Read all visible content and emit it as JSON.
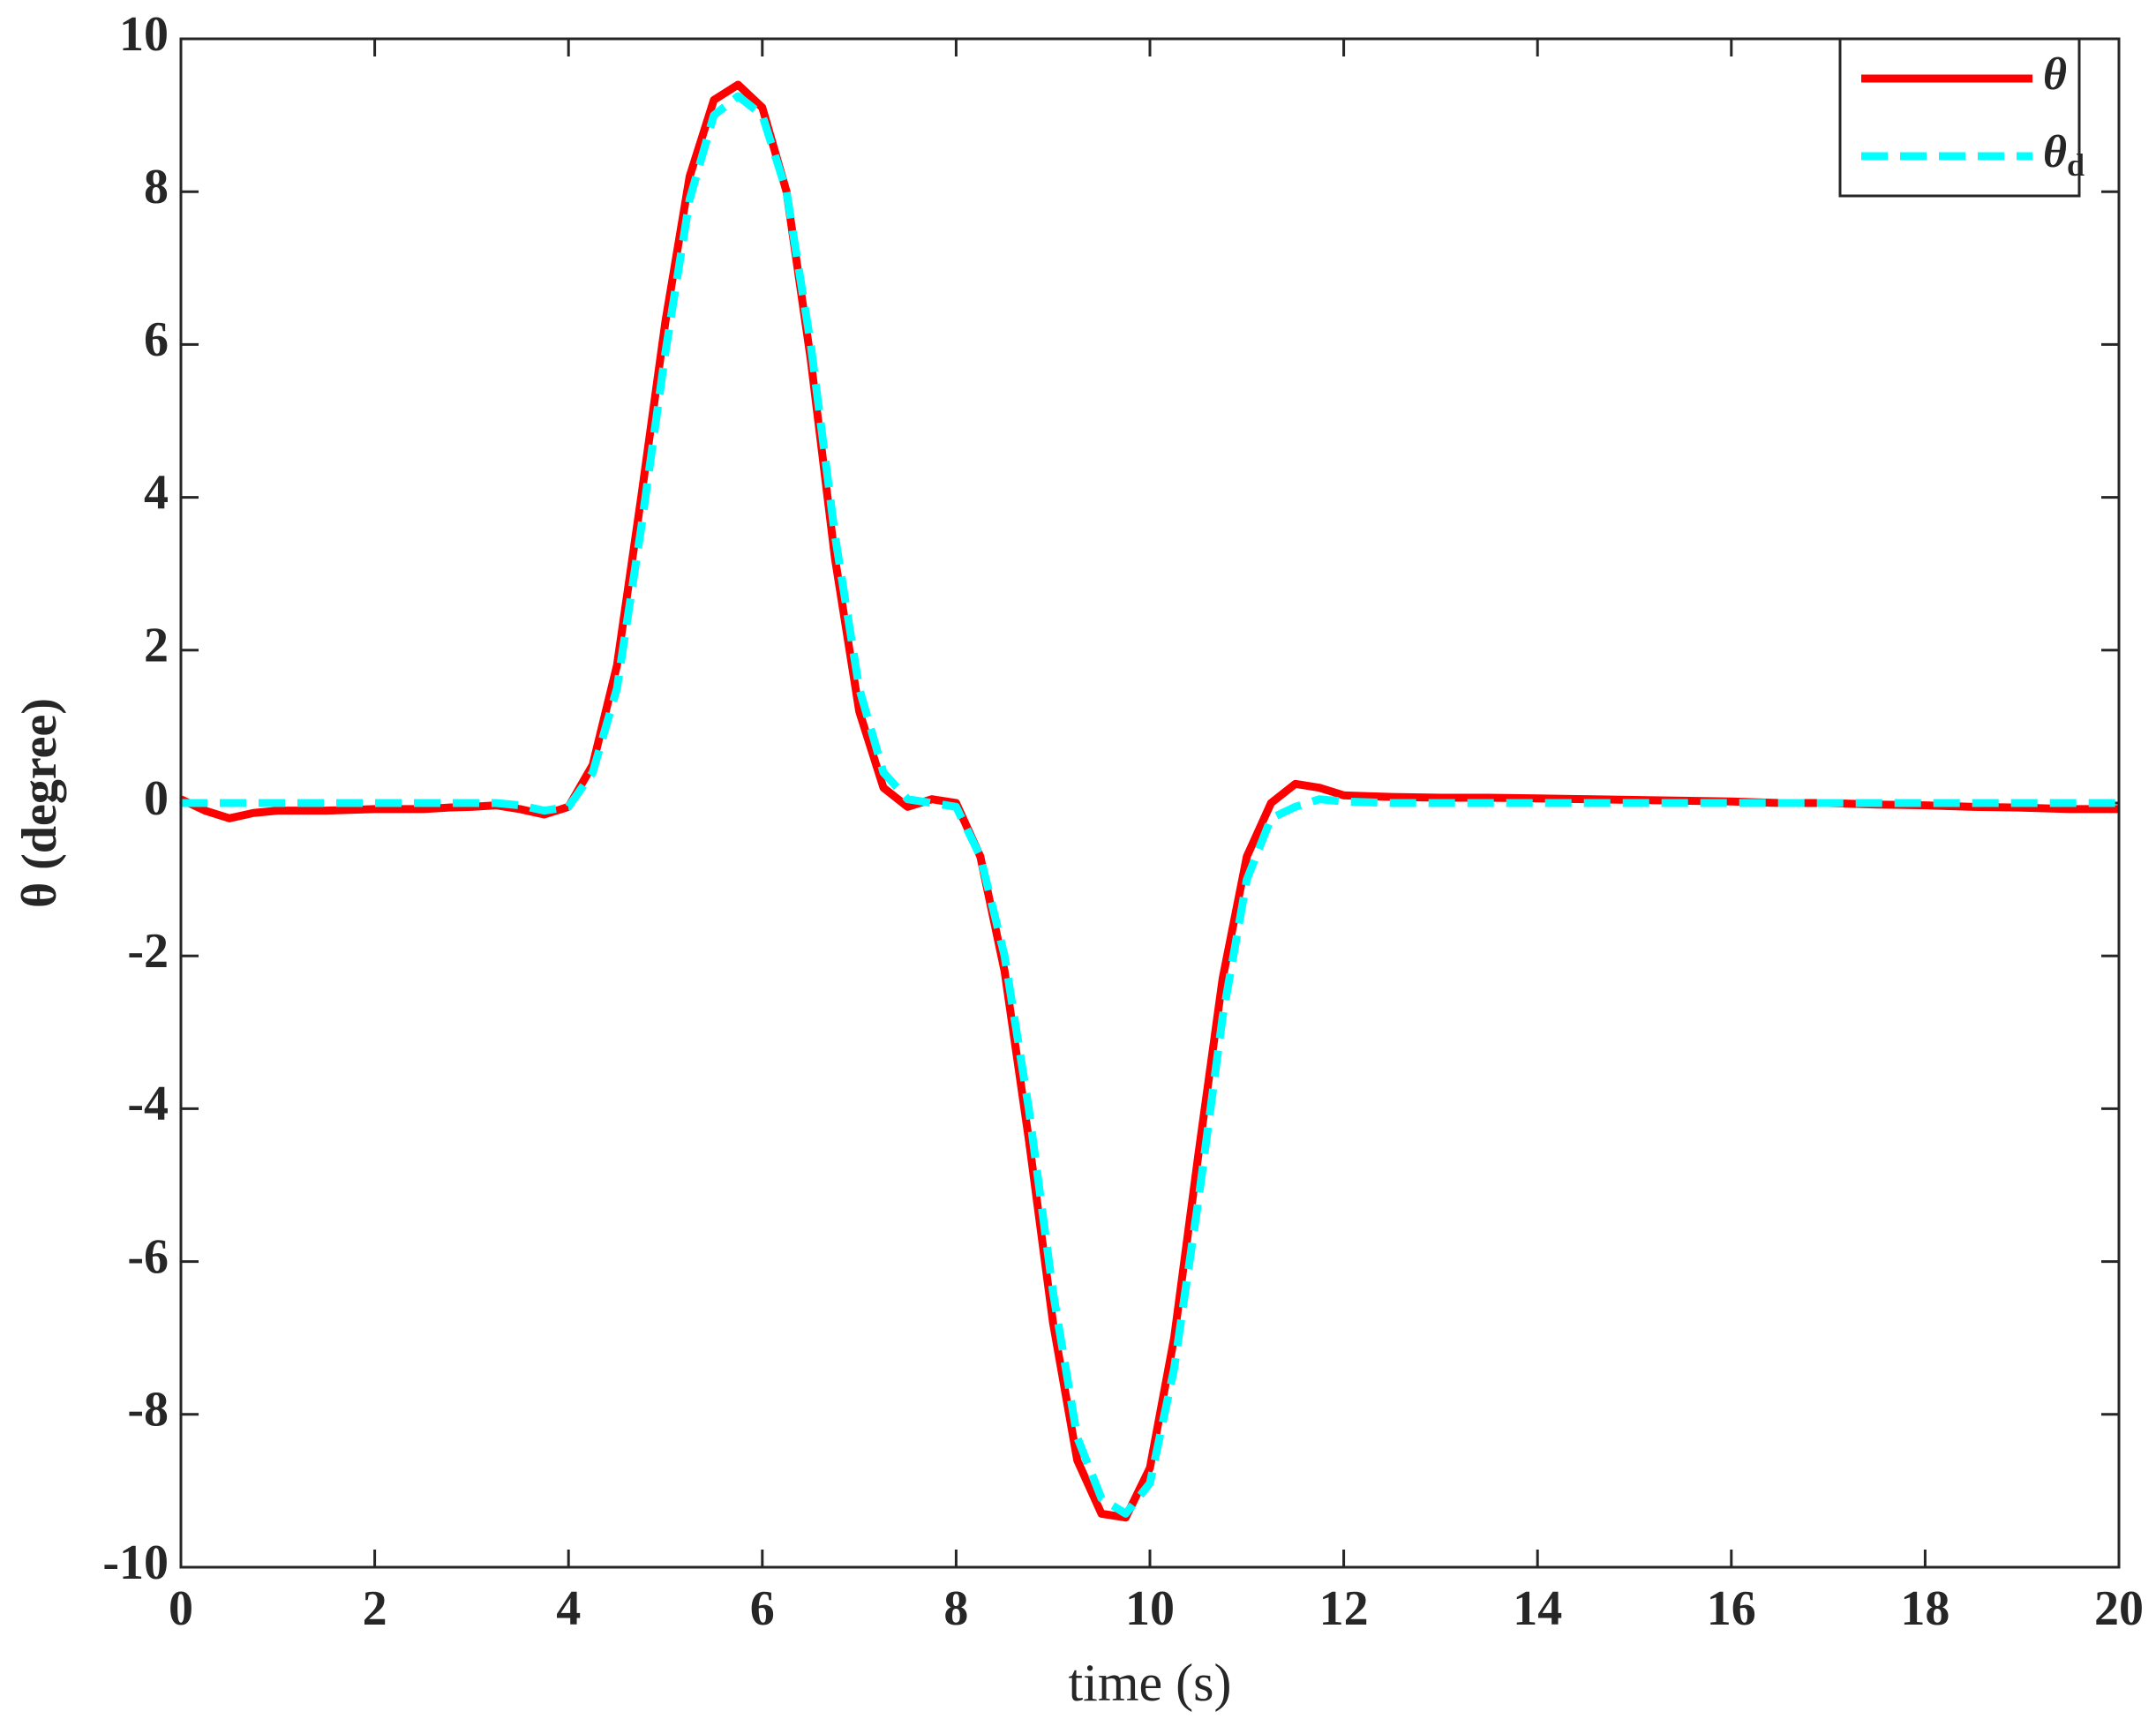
{
  "chart_data": {
    "type": "line",
    "xlabel": "time (s)",
    "ylabel": "θ (degree)",
    "x": [
      0,
      0.25,
      0.5,
      0.75,
      1,
      1.25,
      1.5,
      1.75,
      2,
      2.25,
      2.5,
      2.75,
      3,
      3.25,
      3.5,
      3.75,
      4,
      4.25,
      4.5,
      4.75,
      5,
      5.25,
      5.5,
      5.75,
      6,
      6.25,
      6.5,
      6.75,
      7,
      7.25,
      7.5,
      7.75,
      8,
      8.25,
      8.5,
      8.75,
      9,
      9.25,
      9.5,
      9.75,
      10,
      10.25,
      10.5,
      10.75,
      11,
      11.25,
      11.5,
      11.75,
      12,
      12.5,
      13,
      13.5,
      14,
      14.5,
      15,
      15.5,
      16,
      16.5,
      17,
      17.5,
      18,
      18.5,
      19,
      19.5,
      20
    ],
    "series": [
      {
        "name": "θ",
        "color": "#ff0000",
        "dash": false,
        "values": [
          0.05,
          -0.1,
          -0.2,
          -0.13,
          -0.1,
          -0.1,
          -0.1,
          -0.09,
          -0.08,
          -0.08,
          -0.08,
          -0.06,
          -0.05,
          -0.03,
          -0.08,
          -0.15,
          -0.05,
          0.5,
          1.8,
          4.0,
          6.3,
          8.2,
          9.2,
          9.4,
          9.1,
          8.0,
          5.8,
          3.2,
          1.2,
          0.2,
          -0.05,
          0.05,
          0.0,
          -0.7,
          -2.2,
          -4.4,
          -6.8,
          -8.6,
          -9.3,
          -9.35,
          -8.7,
          -7.0,
          -4.6,
          -2.3,
          -0.7,
          0.0,
          0.25,
          0.2,
          0.1,
          0.08,
          0.07,
          0.07,
          0.06,
          0.05,
          0.04,
          0.03,
          0.02,
          0.0,
          0.0,
          -0.02,
          -0.03,
          -0.05,
          -0.06,
          -0.08,
          -0.08
        ]
      },
      {
        "name": "θd",
        "color": "#00ffff",
        "dash": true,
        "values": [
          0,
          0,
          0,
          0,
          0,
          0,
          0,
          0,
          0,
          0,
          0,
          0,
          0,
          0,
          -0.03,
          -0.1,
          -0.05,
          0.4,
          1.5,
          3.6,
          5.9,
          7.9,
          9.0,
          9.25,
          9.0,
          8.0,
          6.0,
          3.5,
          1.5,
          0.4,
          0.05,
          0.0,
          -0.05,
          -0.7,
          -2.0,
          -4.0,
          -6.4,
          -8.3,
          -9.1,
          -9.3,
          -8.9,
          -7.4,
          -5.2,
          -2.8,
          -1.0,
          -0.2,
          -0.05,
          0.05,
          0.02,
          0,
          0,
          0,
          0,
          0,
          0,
          0,
          0,
          0,
          0,
          0,
          0,
          0,
          0,
          0,
          0
        ]
      }
    ],
    "xlim": [
      0,
      20
    ],
    "xticks": [
      0,
      2,
      4,
      6,
      8,
      10,
      12,
      14,
      16,
      18,
      20
    ],
    "ylim": [
      -10,
      10
    ],
    "yticks": [
      -10,
      -8,
      -6,
      -4,
      -2,
      0,
      2,
      4,
      6,
      8,
      10
    ],
    "grid": false,
    "legend": "upper right"
  }
}
